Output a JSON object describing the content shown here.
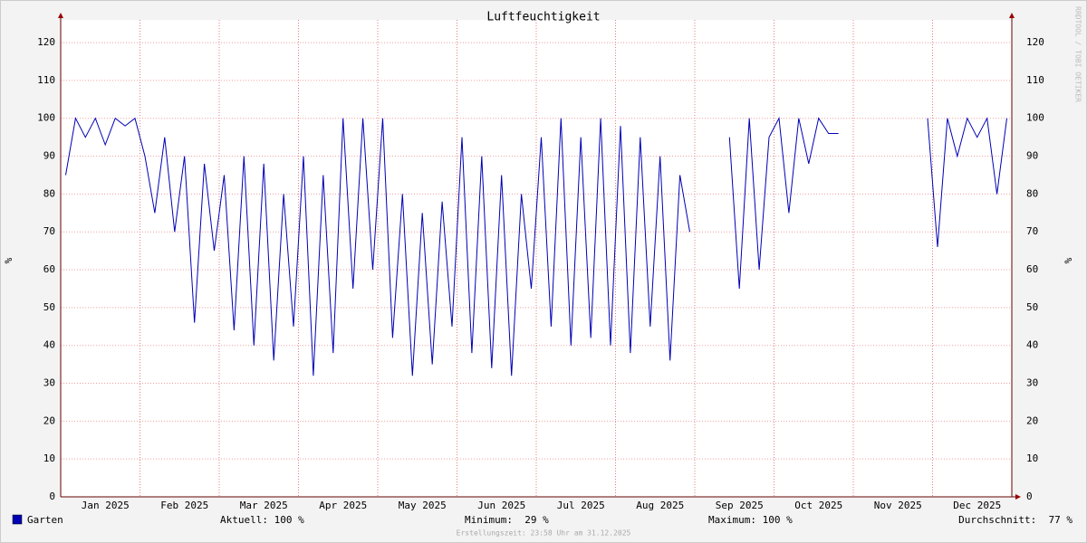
{
  "chart_data": {
    "type": "line",
    "title": "Luftfeuchtigkeit",
    "y_label": "%",
    "y2_label": "%",
    "watermark": "RRDTOOL / TOBI OETIKER",
    "categories": [
      null,
      null,
      null,
      null,
      "Jan 2025",
      null,
      null,
      null,
      null,
      null,
      null,
      null,
      "Feb 2025",
      null,
      null,
      null,
      null,
      null,
      null,
      null,
      "Mar 2025",
      null,
      null,
      null,
      null,
      null,
      null,
      null,
      "Apr 2025",
      null,
      null,
      null,
      null,
      null,
      null,
      null,
      "May 2025",
      null,
      null,
      null,
      null,
      null,
      null,
      null,
      "Jun 2025",
      null,
      null,
      null,
      null,
      null,
      null,
      null,
      "Jul 2025",
      null,
      null,
      null,
      null,
      null,
      null,
      null,
      "Aug 2025",
      null,
      null,
      null,
      null,
      null,
      null,
      null,
      "Sep 2025",
      null,
      null,
      null,
      null,
      null,
      null,
      null,
      "Oct 2025",
      null,
      null,
      null,
      null,
      null,
      null,
      null,
      "Nov 2025",
      null,
      null,
      null,
      null,
      null,
      null,
      null,
      "Dec 2025",
      null,
      null,
      null
    ],
    "series": [
      {
        "name": "Garten",
        "color": "#0000b4",
        "values": [
          85,
          100,
          95,
          100,
          93,
          100,
          98,
          100,
          90,
          75,
          95,
          70,
          90,
          46,
          88,
          65,
          85,
          44,
          90,
          40,
          88,
          36,
          80,
          45,
          90,
          32,
          85,
          38,
          100,
          55,
          100,
          60,
          100,
          42,
          80,
          32,
          75,
          35,
          78,
          45,
          95,
          38,
          90,
          34,
          85,
          32,
          80,
          55,
          95,
          45,
          100,
          40,
          95,
          42,
          100,
          40,
          98,
          38,
          95,
          45,
          90,
          36,
          85,
          70,
          null,
          null,
          null,
          95,
          55,
          100,
          60,
          95,
          100,
          75,
          100,
          88,
          100,
          96,
          96,
          null,
          null,
          null,
          null,
          null,
          null,
          null,
          null,
          100,
          66,
          100,
          90,
          100,
          95,
          100,
          80,
          100
        ]
      }
    ],
    "ylim": [
      0,
      126
    ],
    "yticks": [
      0,
      10,
      20,
      30,
      40,
      50,
      60,
      70,
      80,
      90,
      100,
      110,
      120
    ],
    "grid": true,
    "stats": {
      "current": "Aktuell: 100 %",
      "minimum": "Minimum:  29 %",
      "maximum": "Maximum: 100 %",
      "average": "Durchschnitt:  77 %"
    },
    "footer": "Erstellungszeit: 23:58 Uhr am 31.12.2025"
  }
}
